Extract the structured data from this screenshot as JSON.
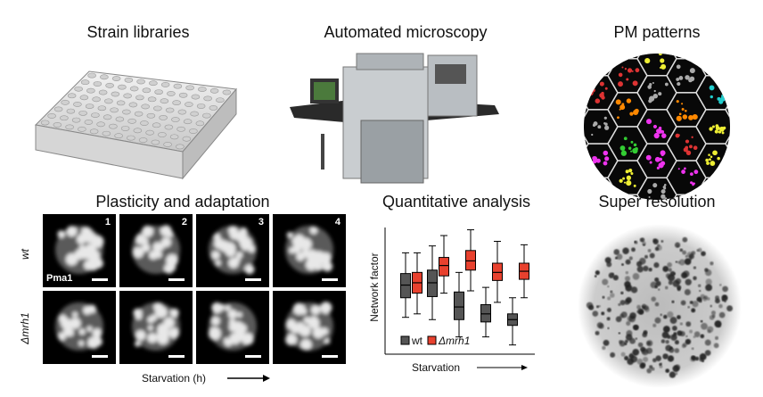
{
  "panels": [
    {
      "title": "Strain libraries"
    },
    {
      "title": "Automated microscopy"
    },
    {
      "title": "PM patterns"
    },
    {
      "title": "Plasticity and adaptation"
    },
    {
      "title": "Quantitative analysis"
    },
    {
      "title": "Super resolution"
    }
  ],
  "micrographs": {
    "columns": [
      "1",
      "2",
      "3",
      "4"
    ],
    "rows": [
      "wt",
      "Δmrh1"
    ],
    "stain": "Pma1",
    "x_label": "Starvation (h)"
  },
  "boxplot": {
    "type": "box",
    "y_label": "Network factor",
    "x_label": "Starvation",
    "ylim": [
      0,
      110
    ],
    "series": [
      {
        "name": "wt",
        "color": "#555555",
        "boxes": [
          {
            "low": 32,
            "q1": 49,
            "median": 60,
            "q3": 70,
            "high": 88
          },
          {
            "low": 30,
            "q1": 50,
            "median": 62,
            "q3": 73,
            "high": 94
          },
          {
            "low": 15,
            "q1": 30,
            "median": 41,
            "q3": 54,
            "high": 71
          },
          {
            "low": 15,
            "q1": 28,
            "median": 35,
            "q3": 43,
            "high": 58
          },
          {
            "low": 8,
            "q1": 25,
            "median": 30,
            "q3": 35,
            "high": 49
          }
        ]
      },
      {
        "name": "Δmrh1",
        "color": "#e8412e",
        "boxes": [
          {
            "low": 35,
            "q1": 53,
            "median": 62,
            "q3": 71,
            "high": 88
          },
          {
            "low": 53,
            "q1": 68,
            "median": 77,
            "q3": 84,
            "high": 103
          },
          {
            "low": 55,
            "q1": 73,
            "median": 81,
            "q3": 90,
            "high": 108
          },
          {
            "low": 45,
            "q1": 64,
            "median": 71,
            "q3": 79,
            "high": 98
          },
          {
            "low": 49,
            "q1": 65,
            "median": 72,
            "q3": 79,
            "high": 95
          }
        ]
      }
    ]
  }
}
